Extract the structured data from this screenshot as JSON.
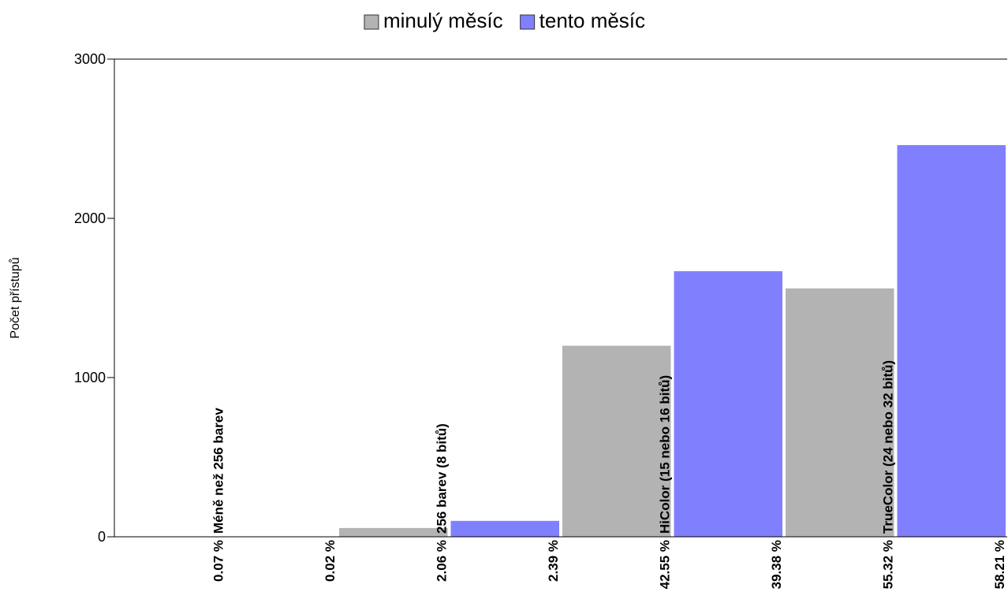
{
  "chart_data": {
    "type": "bar",
    "ylabel": "Počet přístupů",
    "ylim": [
      0,
      3000
    ],
    "yticks": [
      0,
      1000,
      2000,
      3000
    ],
    "legend_position": "top-center",
    "categories": [
      "Méně než 256 barev",
      "256 barev (8 bitů)",
      "HiColor (15 nebo 16 bitů)",
      "TrueColor (24 nebo 32 bitů)"
    ],
    "series": [
      {
        "name": "minulý měsíc",
        "color": "#b3b3b3",
        "values": [
          2,
          55,
          1200,
          1560
        ],
        "percent_labels": [
          "0.07 %",
          "2.06 %",
          "42.55 %",
          "55.32 %"
        ]
      },
      {
        "name": "tento měsíc",
        "color": "#8080ff",
        "values": [
          0,
          100,
          1668,
          2460
        ],
        "percent_labels": [
          "0.02 %",
          "2.39 %",
          "39.38 %",
          "58.21 %"
        ]
      }
    ]
  }
}
